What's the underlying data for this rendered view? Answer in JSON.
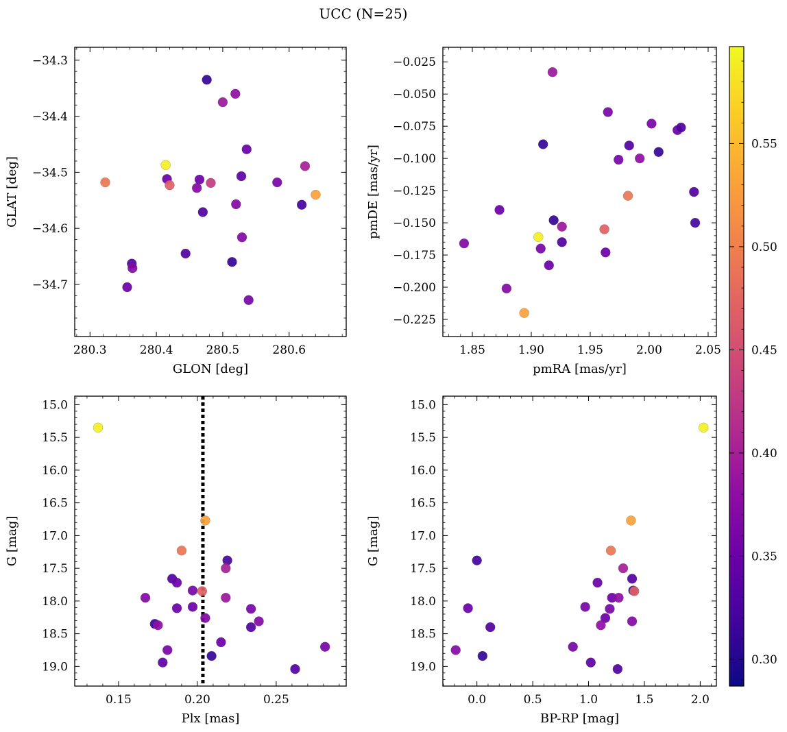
{
  "title": "UCC (N=25)",
  "colorbar": {
    "range": [
      0.287,
      0.597
    ],
    "ticks": [
      0.3,
      0.35,
      0.4,
      0.45,
      0.5,
      0.55
    ],
    "tick_labels": [
      "0.30",
      "0.35",
      "0.40",
      "0.45",
      "0.50",
      "0.55"
    ],
    "colormap": "plasma"
  },
  "chart_data": [
    {
      "type": "scatter",
      "id": "glon-glat",
      "xlabel": "GLON [deg]",
      "ylabel": "GLAT [deg]",
      "xlim": [
        280.277,
        280.686
      ],
      "ylim": [
        -34.793,
        -34.277
      ],
      "xticks": [
        280.3,
        280.4,
        280.5,
        280.6
      ],
      "xtick_labels": [
        "280.3",
        "280.4",
        "280.5",
        "280.6"
      ],
      "yticks": [
        -34.7,
        -34.6,
        -34.5,
        -34.4,
        -34.3
      ],
      "ytick_labels": [
        "−34.7",
        "−34.6",
        "−34.5",
        "−34.4",
        "−34.3"
      ],
      "inverted_y": false,
      "points": [
        {
          "x": 280.476,
          "y": -34.335,
          "c": 0.31
        },
        {
          "x": 280.519,
          "y": -34.36,
          "c": 0.38
        },
        {
          "x": 280.5,
          "y": -34.375,
          "c": 0.39
        },
        {
          "x": 280.536,
          "y": -34.459,
          "c": 0.35
        },
        {
          "x": 280.414,
          "y": -34.487,
          "c": 0.59
        },
        {
          "x": 280.624,
          "y": -34.489,
          "c": 0.4
        },
        {
          "x": 280.323,
          "y": -34.518,
          "c": 0.49
        },
        {
          "x": 280.416,
          "y": -34.512,
          "c": 0.35
        },
        {
          "x": 280.42,
          "y": -34.523,
          "c": 0.47
        },
        {
          "x": 280.465,
          "y": -34.513,
          "c": 0.35
        },
        {
          "x": 280.461,
          "y": -34.528,
          "c": 0.37
        },
        {
          "x": 280.482,
          "y": -34.519,
          "c": 0.43
        },
        {
          "x": 280.528,
          "y": -34.507,
          "c": 0.34
        },
        {
          "x": 280.582,
          "y": -34.518,
          "c": 0.36
        },
        {
          "x": 280.64,
          "y": -34.54,
          "c": 0.53
        },
        {
          "x": 280.52,
          "y": -34.557,
          "c": 0.37
        },
        {
          "x": 280.619,
          "y": -34.558,
          "c": 0.32
        },
        {
          "x": 280.47,
          "y": -34.571,
          "c": 0.33
        },
        {
          "x": 280.529,
          "y": -34.616,
          "c": 0.37
        },
        {
          "x": 280.444,
          "y": -34.645,
          "c": 0.33
        },
        {
          "x": 280.514,
          "y": -34.66,
          "c": 0.31
        },
        {
          "x": 280.363,
          "y": -34.663,
          "c": 0.33
        },
        {
          "x": 280.364,
          "y": -34.671,
          "c": 0.37
        },
        {
          "x": 280.356,
          "y": -34.705,
          "c": 0.35
        },
        {
          "x": 280.539,
          "y": -34.728,
          "c": 0.36
        }
      ]
    },
    {
      "type": "scatter",
      "id": "pmra-pmde",
      "xlabel": "pmRA [mas/yr]",
      "ylabel": "pmDE [mas/yr]",
      "xlim": [
        1.825,
        2.057
      ],
      "ylim": [
        -0.2383,
        -0.0137
      ],
      "xticks": [
        1.85,
        1.9,
        1.95,
        2.0,
        2.05
      ],
      "xtick_labels": [
        "1.85",
        "1.90",
        "1.95",
        "2.00",
        "2.05"
      ],
      "yticks": [
        -0.225,
        -0.2,
        -0.175,
        -0.15,
        -0.125,
        -0.1,
        -0.075,
        -0.05,
        -0.025
      ],
      "ytick_labels": [
        "−0.225",
        "−0.200",
        "−0.175",
        "−0.150",
        "−0.125",
        "−0.100",
        "−0.075",
        "−0.050",
        "−0.025"
      ],
      "inverted_y": false,
      "points": [
        {
          "x": 1.918,
          "y": -0.033,
          "c": 0.39
        },
        {
          "x": 1.965,
          "y": -0.064,
          "c": 0.36
        },
        {
          "x": 2.002,
          "y": -0.073,
          "c": 0.36
        },
        {
          "x": 2.024,
          "y": -0.078,
          "c": 0.35
        },
        {
          "x": 2.027,
          "y": -0.076,
          "c": 0.33
        },
        {
          "x": 1.91,
          "y": -0.089,
          "c": 0.31
        },
        {
          "x": 1.983,
          "y": -0.09,
          "c": 0.33
        },
        {
          "x": 2.008,
          "y": -0.095,
          "c": 0.31
        },
        {
          "x": 1.974,
          "y": -0.101,
          "c": 0.36
        },
        {
          "x": 1.992,
          "y": -0.1,
          "c": 0.38
        },
        {
          "x": 2.038,
          "y": -0.126,
          "c": 0.33
        },
        {
          "x": 1.982,
          "y": -0.129,
          "c": 0.49
        },
        {
          "x": 1.873,
          "y": -0.14,
          "c": 0.35
        },
        {
          "x": 1.919,
          "y": -0.148,
          "c": 0.31
        },
        {
          "x": 2.039,
          "y": -0.15,
          "c": 0.32
        },
        {
          "x": 1.926,
          "y": -0.153,
          "c": 0.39
        },
        {
          "x": 1.962,
          "y": -0.155,
          "c": 0.47
        },
        {
          "x": 1.906,
          "y": -0.161,
          "c": 0.59
        },
        {
          "x": 1.926,
          "y": -0.165,
          "c": 0.33
        },
        {
          "x": 1.843,
          "y": -0.166,
          "c": 0.37
        },
        {
          "x": 1.908,
          "y": -0.17,
          "c": 0.36
        },
        {
          "x": 1.963,
          "y": -0.173,
          "c": 0.35
        },
        {
          "x": 1.915,
          "y": -0.183,
          "c": 0.35
        },
        {
          "x": 1.879,
          "y": -0.201,
          "c": 0.37
        },
        {
          "x": 1.894,
          "y": -0.22,
          "c": 0.53
        }
      ]
    },
    {
      "type": "scatter",
      "id": "plx-g",
      "xlabel": "Plx [mas]",
      "ylabel": "G [mag]",
      "xlim": [
        0.1222,
        0.2944
      ],
      "ylim": [
        19.3,
        14.87
      ],
      "xticks": [
        0.15,
        0.2,
        0.25
      ],
      "xtick_labels": [
        "0.15",
        "0.20",
        "0.25"
      ],
      "yticks": [
        15.0,
        15.5,
        16.0,
        16.5,
        17.0,
        17.5,
        18.0,
        18.5,
        19.0
      ],
      "ytick_labels": [
        "15.0",
        "15.5",
        "16.0",
        "16.5",
        "17.0",
        "17.5",
        "18.0",
        "18.5",
        "19.0"
      ],
      "inverted_y": true,
      "vline": 0.2035,
      "points": [
        {
          "x": 0.137,
          "y": 15.35,
          "c": 0.59
        },
        {
          "x": 0.205,
          "y": 16.77,
          "c": 0.53
        },
        {
          "x": 0.19,
          "y": 17.23,
          "c": 0.49
        },
        {
          "x": 0.219,
          "y": 17.38,
          "c": 0.32
        },
        {
          "x": 0.218,
          "y": 17.5,
          "c": 0.4
        },
        {
          "x": 0.184,
          "y": 17.66,
          "c": 0.33
        },
        {
          "x": 0.187,
          "y": 17.72,
          "c": 0.35
        },
        {
          "x": 0.197,
          "y": 17.84,
          "c": 0.36
        },
        {
          "x": 0.203,
          "y": 17.85,
          "c": 0.47
        },
        {
          "x": 0.167,
          "y": 17.95,
          "c": 0.37
        },
        {
          "x": 0.218,
          "y": 17.95,
          "c": 0.39
        },
        {
          "x": 0.187,
          "y": 18.11,
          "c": 0.35
        },
        {
          "x": 0.197,
          "y": 18.09,
          "c": 0.35
        },
        {
          "x": 0.234,
          "y": 18.12,
          "c": 0.36
        },
        {
          "x": 0.205,
          "y": 18.26,
          "c": 0.37
        },
        {
          "x": 0.239,
          "y": 18.31,
          "c": 0.37
        },
        {
          "x": 0.173,
          "y": 18.35,
          "c": 0.31
        },
        {
          "x": 0.175,
          "y": 18.37,
          "c": 0.38
        },
        {
          "x": 0.234,
          "y": 18.4,
          "c": 0.33
        },
        {
          "x": 0.215,
          "y": 18.63,
          "c": 0.35
        },
        {
          "x": 0.281,
          "y": 18.7,
          "c": 0.36
        },
        {
          "x": 0.181,
          "y": 18.75,
          "c": 0.36
        },
        {
          "x": 0.209,
          "y": 18.84,
          "c": 0.31
        },
        {
          "x": 0.178,
          "y": 18.94,
          "c": 0.34
        },
        {
          "x": 0.262,
          "y": 19.04,
          "c": 0.33
        }
      ]
    },
    {
      "type": "scatter",
      "id": "bprp-g",
      "xlabel": "BP-RP [mag]",
      "ylabel": "G [mag]",
      "xlim": [
        -0.305,
        2.145
      ],
      "ylim": [
        19.3,
        14.87
      ],
      "xticks": [
        0.0,
        0.5,
        1.0,
        1.5,
        2.0
      ],
      "xtick_labels": [
        "0.0",
        "0.5",
        "1.0",
        "1.5",
        "2.0"
      ],
      "yticks": [
        15.0,
        15.5,
        16.0,
        16.5,
        17.0,
        17.5,
        18.0,
        18.5,
        19.0
      ],
      "ytick_labels": [
        "15.0",
        "15.5",
        "16.0",
        "16.5",
        "17.0",
        "17.5",
        "18.0",
        "18.5",
        "19.0"
      ],
      "inverted_y": true,
      "points": [
        {
          "x": 2.03,
          "y": 15.35,
          "c": 0.59
        },
        {
          "x": 1.38,
          "y": 16.77,
          "c": 0.53
        },
        {
          "x": 1.2,
          "y": 17.23,
          "c": 0.49
        },
        {
          "x": 0.0,
          "y": 17.38,
          "c": 0.32
        },
        {
          "x": 1.31,
          "y": 17.5,
          "c": 0.4
        },
        {
          "x": 1.39,
          "y": 17.66,
          "c": 0.33
        },
        {
          "x": 1.08,
          "y": 17.72,
          "c": 0.35
        },
        {
          "x": 1.4,
          "y": 17.84,
          "c": 0.31
        },
        {
          "x": 1.41,
          "y": 17.85,
          "c": 0.47
        },
        {
          "x": 1.21,
          "y": 17.95,
          "c": 0.35
        },
        {
          "x": 1.27,
          "y": 17.95,
          "c": 0.38
        },
        {
          "x": 0.97,
          "y": 18.09,
          "c": 0.36
        },
        {
          "x": -0.08,
          "y": 18.11,
          "c": 0.35
        },
        {
          "x": 1.19,
          "y": 18.12,
          "c": 0.36
        },
        {
          "x": 1.15,
          "y": 18.26,
          "c": 0.35
        },
        {
          "x": 1.39,
          "y": 18.31,
          "c": 0.37
        },
        {
          "x": 1.11,
          "y": 18.37,
          "c": 0.38
        },
        {
          "x": 0.12,
          "y": 18.4,
          "c": 0.33
        },
        {
          "x": 0.86,
          "y": 18.7,
          "c": 0.36
        },
        {
          "x": -0.19,
          "y": 18.75,
          "c": 0.37
        },
        {
          "x": 0.05,
          "y": 18.84,
          "c": 0.31
        },
        {
          "x": 1.02,
          "y": 18.94,
          "c": 0.34
        },
        {
          "x": 1.26,
          "y": 19.04,
          "c": 0.33
        }
      ]
    }
  ]
}
